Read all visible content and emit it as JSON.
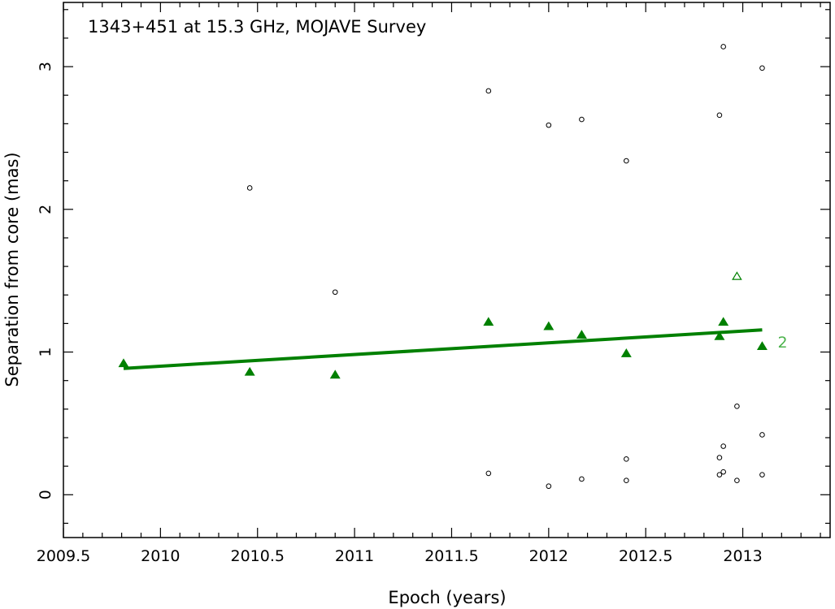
{
  "chart_data": {
    "type": "scatter",
    "title": "1343+451 at 15.3 GHz, MOJAVE Survey",
    "xlabel": "Epoch (years)",
    "ylabel": "Separation from core (mas)",
    "xlim": [
      2009.5,
      2013.45
    ],
    "ylim": [
      -0.3,
      3.45
    ],
    "x_ticks": [
      2009.5,
      2010,
      2010.5,
      2011,
      2011.5,
      2012,
      2012.5,
      2013
    ],
    "x_tick_labels": [
      "2009.5",
      "2010",
      "2010.5",
      "2011",
      "2011.5",
      "2012",
      "2012.5",
      "2013"
    ],
    "y_ticks": [
      0,
      1,
      2,
      3
    ],
    "y_tick_labels": [
      "0",
      "1",
      "2",
      "3"
    ],
    "colors": {
      "component": "#008000",
      "fit_line": "#008000",
      "other": "#000000",
      "label": "#4cb34c"
    },
    "series": [
      {
        "marker": "filled-triangle",
        "points": [
          {
            "x": 2009.81,
            "y": 0.92
          },
          {
            "x": 2010.46,
            "y": 0.86
          },
          {
            "x": 2010.9,
            "y": 0.84
          },
          {
            "x": 2011.69,
            "y": 1.21
          },
          {
            "x": 2012.0,
            "y": 1.18
          },
          {
            "x": 2012.17,
            "y": 1.12
          },
          {
            "x": 2012.4,
            "y": 0.99
          },
          {
            "x": 2012.88,
            "y": 1.11
          },
          {
            "x": 2012.9,
            "y": 1.21
          },
          {
            "x": 2013.1,
            "y": 1.04
          }
        ]
      },
      {
        "marker": "open-triangle",
        "points": [
          {
            "x": 2012.97,
            "y": 1.53
          }
        ]
      },
      {
        "marker": "open-circle",
        "points": [
          {
            "x": 2010.46,
            "y": 2.15
          },
          {
            "x": 2010.9,
            "y": 1.42
          },
          {
            "x": 2011.69,
            "y": 2.83
          },
          {
            "x": 2011.69,
            "y": 0.15
          },
          {
            "x": 2012.0,
            "y": 2.59
          },
          {
            "x": 2012.0,
            "y": 0.06
          },
          {
            "x": 2012.17,
            "y": 2.63
          },
          {
            "x": 2012.17,
            "y": 0.11
          },
          {
            "x": 2012.4,
            "y": 2.34
          },
          {
            "x": 2012.4,
            "y": 0.25
          },
          {
            "x": 2012.4,
            "y": 0.1
          },
          {
            "x": 2012.88,
            "y": 2.66
          },
          {
            "x": 2012.88,
            "y": 0.26
          },
          {
            "x": 2012.88,
            "y": 0.14
          },
          {
            "x": 2012.9,
            "y": 3.14
          },
          {
            "x": 2012.9,
            "y": 0.34
          },
          {
            "x": 2012.9,
            "y": 0.16
          },
          {
            "x": 2012.97,
            "y": 0.62
          },
          {
            "x": 2012.97,
            "y": 0.1
          },
          {
            "x": 2013.1,
            "y": 2.99
          },
          {
            "x": 2013.1,
            "y": 0.42
          },
          {
            "x": 2013.1,
            "y": 0.14
          }
        ]
      }
    ],
    "fit_line": {
      "x": [
        2009.81,
        2013.1
      ],
      "y": [
        0.885,
        1.155
      ]
    },
    "annotations": [
      {
        "text": "2",
        "x": 2013.18,
        "y": 1.07
      }
    ]
  }
}
